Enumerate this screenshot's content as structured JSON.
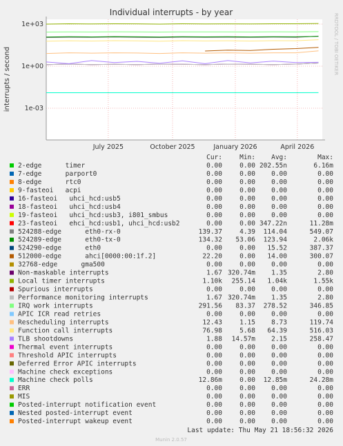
{
  "chart_data": {
    "type": "line",
    "title": "Individual interrupts - by year",
    "ylabel": "interrupts / second",
    "watermark": "RRDTOOL / TOBI OETIKER",
    "log_y": true,
    "grid": true,
    "ylim": [
      5.5e-06,
      2200
    ],
    "yticks": [
      {
        "value": 1000,
        "label": "1e+03"
      },
      {
        "value": 1,
        "label": "1e+00"
      },
      {
        "value": 0.001,
        "label": "1e-03"
      }
    ],
    "xlim": [
      0,
      365
    ],
    "xticks": [
      {
        "value": 82,
        "label": "July 2025"
      },
      {
        "value": 167,
        "label": "October 2025"
      },
      {
        "value": 250,
        "label": "January 2026"
      },
      {
        "value": 332,
        "label": "April 2026"
      }
    ],
    "x": [
      0,
      30,
      60,
      90,
      120,
      150,
      180,
      210,
      240,
      270,
      300,
      330,
      360
    ],
    "legend_header": [
      "Cur:",
      "Min:",
      "Avg:",
      "Max:"
    ],
    "series": [
      {
        "name": "2-edge      timer",
        "color": "#00CC00",
        "cur": "0.00",
        "min": "0.00",
        "avg": "202.55n",
        "max": "6.16m"
      },
      {
        "name": "7-edge      parport0",
        "color": "#0066B3",
        "cur": "0.00",
        "min": "0.00",
        "avg": "0.00",
        "max": "0.00"
      },
      {
        "name": "8-edge      rtc0",
        "color": "#FF8000",
        "cur": "0.00",
        "min": "0.00",
        "avg": "0.00",
        "max": "0.00"
      },
      {
        "name": "9-fasteoi   acpi",
        "color": "#FFCC00",
        "cur": "0.00",
        "min": "0.00",
        "avg": "0.00",
        "max": "0.00"
      },
      {
        "name": "16-fasteoi   uhci_hcd:usb5",
        "color": "#330099",
        "cur": "0.00",
        "min": "0.00",
        "avg": "0.00",
        "max": "0.00"
      },
      {
        "name": "18-fasteoi   uhci_hcd:usb4",
        "color": "#990099",
        "cur": "0.00",
        "min": "0.00",
        "avg": "0.00",
        "max": "0.00"
      },
      {
        "name": "19-fasteoi   uhci_hcd:usb3, i801_smbus",
        "color": "#CCFF00",
        "cur": "0.00",
        "min": "0.00",
        "avg": "0.00",
        "max": "0.00"
      },
      {
        "name": "23-fasteoi   ehci_hcd:usb1, uhci_hcd:usb2",
        "color": "#FF0000",
        "cur": "0.00",
        "min": "0.00",
        "avg": "347.22n",
        "max": "11.28m"
      },
      {
        "name": "524288-edge      eth0-rx-0",
        "color": "#808080",
        "cur": "139.37",
        "min": "4.39",
        "avg": "114.04",
        "max": "549.07",
        "values": [
          110,
          115,
          112,
          118,
          114,
          110,
          116,
          113,
          115,
          112,
          117,
          114,
          139
        ]
      },
      {
        "name": "524289-edge      eth0-tx-0",
        "color": "#008F00",
        "cur": "134.32",
        "min": "53.06",
        "avg": "123.94",
        "max": "2.06k",
        "values": [
          120,
          125,
          122,
          128,
          124,
          120,
          126,
          123,
          125,
          122,
          127,
          124,
          134
        ]
      },
      {
        "name": "524290-edge      eth0",
        "color": "#00487D",
        "cur": "0.00",
        "min": "0.00",
        "avg": "15.52",
        "max": "387.37"
      },
      {
        "name": "512000-edge      ahci[0000:00:1f.2]",
        "color": "#B35A00",
        "cur": "22.20",
        "min": "0.00",
        "avg": "14.00",
        "max": "300.07",
        "values": [
          null,
          null,
          null,
          null,
          null,
          null,
          null,
          12,
          14,
          13,
          16,
          18,
          22
        ]
      },
      {
        "name": "32768-edge      gma500",
        "color": "#B38F00",
        "cur": "0.00",
        "min": "0.00",
        "avg": "0.00",
        "max": "0.00"
      },
      {
        "name": "Non-maskable interrupts",
        "color": "#6B006B",
        "cur": "1.67",
        "min": "320.74m",
        "avg": "1.35",
        "max": "2.80",
        "values": [
          1.3,
          1.4,
          1.3,
          1.35,
          1.3,
          1.4,
          1.35,
          1.3,
          1.4,
          1.35,
          1.3,
          1.4,
          1.67
        ]
      },
      {
        "name": "Local timer interrupts",
        "color": "#8FB300",
        "cur": "1.10k",
        "min": "255.14",
        "avg": "1.04k",
        "max": "1.55k",
        "values": [
          1000,
          1050,
          1020,
          1060,
          1040,
          1000,
          1050,
          1030,
          1040,
          1020,
          1060,
          1050,
          1100
        ]
      },
      {
        "name": "Spurious interrupts",
        "color": "#B30000",
        "cur": "0.00",
        "min": "0.00",
        "avg": "0.00",
        "max": "0.00"
      },
      {
        "name": "Performance monitoring interrupts",
        "color": "#BEBEBE",
        "cur": "1.67",
        "min": "320.74m",
        "avg": "1.35",
        "max": "2.80",
        "values": [
          1.3,
          1.4,
          1.3,
          1.35,
          1.3,
          1.4,
          1.35,
          1.3,
          1.4,
          1.35,
          1.3,
          1.4,
          1.67
        ]
      },
      {
        "name": "IRQ work interrupts",
        "color": "#80FF80",
        "cur": "291.56",
        "min": "83.37",
        "avg": "278.52",
        "max": "346.85",
        "values": [
          270,
          280,
          275,
          285,
          278,
          270,
          282,
          276,
          280,
          275,
          285,
          280,
          291
        ]
      },
      {
        "name": "APIC ICR read retries",
        "color": "#80C9FF",
        "cur": "0.00",
        "min": "0.00",
        "avg": "0.00",
        "max": "0.00"
      },
      {
        "name": "Rescheduling interrupts",
        "color": "#FFC080",
        "cur": "12.43",
        "min": "1.15",
        "avg": "8.73",
        "max": "119.74",
        "values": [
          8,
          9,
          8.5,
          9,
          8.7,
          8,
          9,
          8.5,
          9,
          8.5,
          9,
          9,
          12.4
        ]
      },
      {
        "name": "Function call interrupts",
        "color": "#FFE680",
        "cur": "76.98",
        "min": "5.68",
        "avg": "64.39",
        "max": "516.03",
        "values": [
          60,
          65,
          62,
          66,
          64,
          60,
          66,
          63,
          65,
          62,
          66,
          65,
          77
        ]
      },
      {
        "name": "TLB shootdowns",
        "color": "#AA80FF",
        "cur": "1.88",
        "min": "14.57m",
        "avg": "2.15",
        "max": "258.47",
        "values": [
          2,
          1.5,
          2.5,
          1.8,
          2.2,
          1.6,
          2.4,
          1.5,
          2.5,
          1.7,
          2.3,
          1.8,
          1.88
        ]
      },
      {
        "name": "Thermal event interrupts",
        "color": "#EE00CC",
        "cur": "0.00",
        "min": "0.00",
        "avg": "0.00",
        "max": "0.00"
      },
      {
        "name": "Threshold APIC interrupts",
        "color": "#FF8080",
        "cur": "0.00",
        "min": "0.00",
        "avg": "0.00",
        "max": "0.00"
      },
      {
        "name": "Deferred Error APIC interrupts",
        "color": "#666600",
        "cur": "0.00",
        "min": "0.00",
        "avg": "0.00",
        "max": "0.00"
      },
      {
        "name": "Machine check exceptions",
        "color": "#FFBFFF",
        "cur": "0.00",
        "min": "0.00",
        "avg": "0.00",
        "max": "0.00"
      },
      {
        "name": "Machine check polls",
        "color": "#00FFCC",
        "cur": "12.86m",
        "min": "0.00",
        "avg": "12.85m",
        "max": "24.28m",
        "values": [
          0.0128,
          0.0128,
          0.0128,
          0.0128,
          0.0128,
          0.0128,
          0.0128,
          0.0128,
          0.0128,
          0.0128,
          0.0128,
          0.0128,
          0.0129
        ]
      },
      {
        "name": "ERR",
        "color": "#CC6699",
        "cur": "0.00",
        "min": "0.00",
        "avg": "0.00",
        "max": "0.00"
      },
      {
        "name": "MIS",
        "color": "#999900",
        "cur": "0.00",
        "min": "0.00",
        "avg": "0.00",
        "max": "0.00"
      },
      {
        "name": "Posted-interrupt notification event",
        "color": "#00CC00",
        "cur": "0.00",
        "min": "0.00",
        "avg": "0.00",
        "max": "0.00"
      },
      {
        "name": "Nested posted-interrupt event",
        "color": "#0066B3",
        "cur": "0.00",
        "min": "0.00",
        "avg": "0.00",
        "max": "0.00"
      },
      {
        "name": "Posted-interrupt wakeup event",
        "color": "#FF8000",
        "cur": "0.00",
        "min": "0.00",
        "avg": "0.00",
        "max": "0.00"
      }
    ],
    "last_update": "Last update: Thu May 21 18:56:32 2026",
    "footer": "Munin 2.0.57"
  }
}
